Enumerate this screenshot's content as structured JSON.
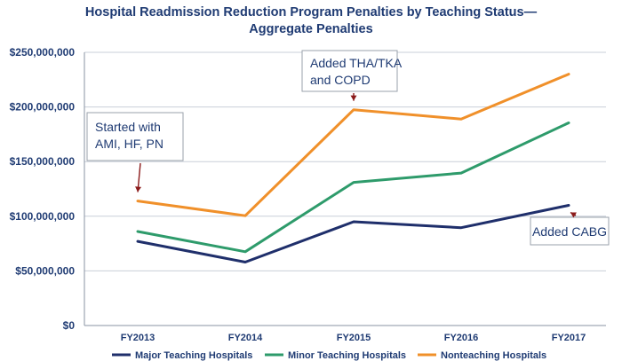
{
  "chart_data": {
    "type": "line",
    "title": "Hospital Readmission Reduction Program Penalties by Teaching Status—",
    "subtitle": "Aggregate Penalties",
    "xlabel": "",
    "ylabel": "",
    "categories": [
      "FY2013",
      "FY2014",
      "FY2015",
      "FY2016",
      "FY2017"
    ],
    "ylim": [
      0,
      250000000
    ],
    "yticks": [
      0,
      50000000,
      100000000,
      150000000,
      200000000,
      250000000
    ],
    "ytick_labels": [
      "$0",
      "$50,000,000",
      "$100,000,000",
      "$150,000,000",
      "$200,000,000",
      "$250,000,000"
    ],
    "grid": true,
    "legend_position": "bottom",
    "series": [
      {
        "name": "Major Teaching Hospitals",
        "color": "#1f2f6b",
        "values": [
          77000000,
          58000000,
          95000000,
          89500000,
          110000000
        ]
      },
      {
        "name": "Minor Teaching Hospitals",
        "color": "#2e9b6b",
        "values": [
          86000000,
          67500000,
          131000000,
          139500000,
          185500000
        ]
      },
      {
        "name": "Nonteaching Hospitals",
        "color": "#f0902a",
        "values": [
          114000000,
          100500000,
          197500000,
          189000000,
          230000000
        ]
      }
    ],
    "annotations": [
      {
        "lines": [
          "Started with",
          "AMI, HF, PN"
        ],
        "category": "FY2013",
        "series": "Nonteaching Hospitals"
      },
      {
        "lines": [
          "Added THA/TKA",
          "and COPD"
        ],
        "category": "FY2015",
        "series": "Nonteaching Hospitals"
      },
      {
        "lines": [
          "Added CABG"
        ],
        "category": "FY2017",
        "series": "Major Teaching Hospitals"
      }
    ]
  }
}
